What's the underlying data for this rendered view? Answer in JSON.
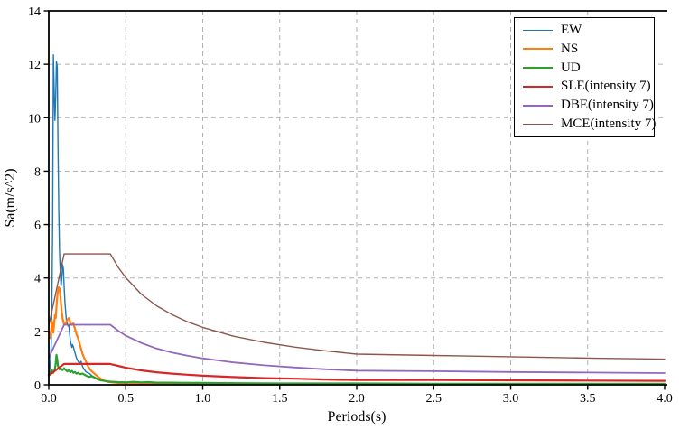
{
  "figure": {
    "background": "#ffffff",
    "grid_color": "#b0b0b0",
    "axis_color": "#000000"
  },
  "chart_data": {
    "type": "line",
    "title": "",
    "xlabel": "Periods(s)",
    "ylabel": "Sa(m/s^2)",
    "xlim": [
      0,
      4
    ],
    "ylim": [
      0,
      14
    ],
    "xticks": [
      "0.0",
      "0.5",
      "1.0",
      "1.5",
      "2.0",
      "2.5",
      "3.0",
      "3.5",
      "4.0"
    ],
    "yticks": [
      "0",
      "2",
      "4",
      "6",
      "8",
      "10",
      "12",
      "14"
    ],
    "grid": {
      "visible": true,
      "style": "dashed"
    },
    "legend_position": "upper right",
    "series": [
      {
        "name": "EW",
        "color": "#1f77b4",
        "width": 1.4,
        "points": [
          [
            0,
            0.3
          ],
          [
            0.005,
            0.5
          ],
          [
            0.01,
            0.8
          ],
          [
            0.015,
            1.4
          ],
          [
            0.02,
            2.8
          ],
          [
            0.025,
            6.0
          ],
          [
            0.03,
            12.35
          ],
          [
            0.035,
            11.0
          ],
          [
            0.04,
            9.9
          ],
          [
            0.045,
            10.8
          ],
          [
            0.05,
            12.1
          ],
          [
            0.055,
            11.9
          ],
          [
            0.06,
            9.0
          ],
          [
            0.065,
            6.5
          ],
          [
            0.07,
            5.0
          ],
          [
            0.075,
            4.2
          ],
          [
            0.08,
            3.7
          ],
          [
            0.085,
            4.0
          ],
          [
            0.09,
            4.5
          ],
          [
            0.095,
            4.35
          ],
          [
            0.1,
            3.7
          ],
          [
            0.105,
            3.1
          ],
          [
            0.11,
            2.7
          ],
          [
            0.115,
            2.4
          ],
          [
            0.12,
            2.3
          ],
          [
            0.125,
            2.2
          ],
          [
            0.13,
            2.25
          ],
          [
            0.135,
            1.95
          ],
          [
            0.14,
            1.65
          ],
          [
            0.15,
            1.4
          ],
          [
            0.155,
            1.5
          ],
          [
            0.16,
            1.42
          ],
          [
            0.17,
            1.2
          ],
          [
            0.18,
            1.0
          ],
          [
            0.19,
            0.88
          ],
          [
            0.2,
            0.82
          ],
          [
            0.21,
            0.88
          ],
          [
            0.22,
            0.68
          ],
          [
            0.23,
            0.58
          ],
          [
            0.24,
            0.5
          ],
          [
            0.25,
            0.46
          ],
          [
            0.26,
            0.44
          ],
          [
            0.27,
            0.4
          ],
          [
            0.28,
            0.34
          ],
          [
            0.3,
            0.28
          ],
          [
            0.32,
            0.22
          ],
          [
            0.34,
            0.18
          ],
          [
            0.36,
            0.15
          ],
          [
            0.38,
            0.13
          ],
          [
            0.4,
            0.12
          ],
          [
            0.45,
            0.1
          ],
          [
            0.5,
            0.1
          ],
          [
            0.55,
            0.09
          ],
          [
            0.6,
            0.08
          ],
          [
            0.7,
            0.09
          ],
          [
            0.8,
            0.07
          ],
          [
            0.9,
            0.08
          ],
          [
            1.0,
            0.06
          ],
          [
            1.1,
            0.07
          ],
          [
            1.25,
            0.06
          ],
          [
            1.5,
            0.05
          ],
          [
            1.75,
            0.05
          ],
          [
            2.0,
            0.05
          ],
          [
            2.25,
            0.04
          ],
          [
            2.5,
            0.04
          ],
          [
            2.75,
            0.04
          ],
          [
            3.0,
            0.04
          ],
          [
            3.25,
            0.03
          ],
          [
            3.5,
            0.03
          ],
          [
            3.75,
            0.03
          ],
          [
            4.0,
            0.03
          ]
        ]
      },
      {
        "name": "NS",
        "color": "#ff7f0e",
        "width": 2.2,
        "points": [
          [
            0,
            2.0
          ],
          [
            0.01,
            1.75
          ],
          [
            0.015,
            2.0
          ],
          [
            0.02,
            2.4
          ],
          [
            0.025,
            2.2
          ],
          [
            0.03,
            1.95
          ],
          [
            0.035,
            2.3
          ],
          [
            0.04,
            2.6
          ],
          [
            0.045,
            2.5
          ],
          [
            0.05,
            2.9
          ],
          [
            0.055,
            3.3
          ],
          [
            0.06,
            3.5
          ],
          [
            0.065,
            3.65
          ],
          [
            0.07,
            3.6
          ],
          [
            0.075,
            3.4
          ],
          [
            0.08,
            3.0
          ],
          [
            0.085,
            2.7
          ],
          [
            0.09,
            2.5
          ],
          [
            0.095,
            2.35
          ],
          [
            0.1,
            2.25
          ],
          [
            0.11,
            2.3
          ],
          [
            0.12,
            2.42
          ],
          [
            0.13,
            2.5
          ],
          [
            0.135,
            2.45
          ],
          [
            0.14,
            2.3
          ],
          [
            0.15,
            2.25
          ],
          [
            0.16,
            2.3
          ],
          [
            0.17,
            2.1
          ],
          [
            0.18,
            1.9
          ],
          [
            0.19,
            1.75
          ],
          [
            0.2,
            1.55
          ],
          [
            0.21,
            1.35
          ],
          [
            0.22,
            1.15
          ],
          [
            0.23,
            1.0
          ],
          [
            0.24,
            0.9
          ],
          [
            0.25,
            0.75
          ],
          [
            0.26,
            0.65
          ],
          [
            0.27,
            0.56
          ],
          [
            0.28,
            0.5
          ],
          [
            0.3,
            0.4
          ],
          [
            0.32,
            0.3
          ],
          [
            0.34,
            0.22
          ],
          [
            0.36,
            0.16
          ],
          [
            0.38,
            0.12
          ],
          [
            0.4,
            0.1
          ],
          [
            0.45,
            0.07
          ],
          [
            0.5,
            0.06
          ],
          [
            0.6,
            0.05
          ],
          [
            0.7,
            0.05
          ],
          [
            0.8,
            0.04
          ],
          [
            1.0,
            0.04
          ],
          [
            1.25,
            0.03
          ],
          [
            1.5,
            0.03
          ],
          [
            2.0,
            0.03
          ],
          [
            2.5,
            0.02
          ],
          [
            3.0,
            0.02
          ],
          [
            3.5,
            0.02
          ],
          [
            4.0,
            0.02
          ]
        ]
      },
      {
        "name": "UD",
        "color": "#2ca02c",
        "width": 2.2,
        "points": [
          [
            0,
            0.38
          ],
          [
            0.01,
            0.48
          ],
          [
            0.015,
            0.42
          ],
          [
            0.02,
            0.55
          ],
          [
            0.025,
            0.5
          ],
          [
            0.03,
            0.45
          ],
          [
            0.035,
            0.52
          ],
          [
            0.04,
            0.6
          ],
          [
            0.045,
            0.8
          ],
          [
            0.05,
            1.12
          ],
          [
            0.055,
            0.95
          ],
          [
            0.06,
            0.7
          ],
          [
            0.065,
            0.62
          ],
          [
            0.07,
            0.58
          ],
          [
            0.075,
            0.65
          ],
          [
            0.08,
            0.6
          ],
          [
            0.09,
            0.55
          ],
          [
            0.1,
            0.62
          ],
          [
            0.11,
            0.55
          ],
          [
            0.12,
            0.5
          ],
          [
            0.13,
            0.55
          ],
          [
            0.14,
            0.48
          ],
          [
            0.15,
            0.52
          ],
          [
            0.16,
            0.45
          ],
          [
            0.17,
            0.48
          ],
          [
            0.18,
            0.42
          ],
          [
            0.19,
            0.45
          ],
          [
            0.2,
            0.4
          ],
          [
            0.22,
            0.42
          ],
          [
            0.24,
            0.35
          ],
          [
            0.26,
            0.3
          ],
          [
            0.28,
            0.32
          ],
          [
            0.3,
            0.26
          ],
          [
            0.32,
            0.2
          ],
          [
            0.34,
            0.17
          ],
          [
            0.36,
            0.15
          ],
          [
            0.38,
            0.13
          ],
          [
            0.4,
            0.12
          ],
          [
            0.45,
            0.1
          ],
          [
            0.5,
            0.09
          ],
          [
            0.55,
            0.11
          ],
          [
            0.6,
            0.09
          ],
          [
            0.65,
            0.1
          ],
          [
            0.7,
            0.08
          ],
          [
            0.8,
            0.08
          ],
          [
            0.9,
            0.07
          ],
          [
            1.0,
            0.07
          ],
          [
            1.2,
            0.06
          ],
          [
            1.5,
            0.05
          ],
          [
            2.0,
            0.05
          ],
          [
            2.5,
            0.04
          ],
          [
            3.0,
            0.04
          ],
          [
            3.5,
            0.04
          ],
          [
            4.0,
            0.04
          ]
        ]
      },
      {
        "name": "SLE(intensity 7)",
        "color": "#d62728",
        "width": 2.2,
        "points": [
          [
            0,
            0.35
          ],
          [
            0.1,
            0.78
          ],
          [
            0.4,
            0.78
          ],
          [
            0.45,
            0.71
          ],
          [
            0.5,
            0.64
          ],
          [
            0.6,
            0.54
          ],
          [
            0.7,
            0.47
          ],
          [
            0.8,
            0.42
          ],
          [
            0.9,
            0.38
          ],
          [
            1.0,
            0.34
          ],
          [
            1.2,
            0.29
          ],
          [
            1.4,
            0.25
          ],
          [
            1.6,
            0.23
          ],
          [
            1.8,
            0.2
          ],
          [
            2.0,
            0.18
          ],
          [
            2.5,
            0.18
          ],
          [
            3.0,
            0.17
          ],
          [
            3.5,
            0.16
          ],
          [
            4.0,
            0.15
          ]
        ]
      },
      {
        "name": "DBE(intensity 7)",
        "color": "#9467bd",
        "width": 1.8,
        "points": [
          [
            0,
            1.01
          ],
          [
            0.1,
            2.25
          ],
          [
            0.4,
            2.25
          ],
          [
            0.45,
            2.03
          ],
          [
            0.5,
            1.84
          ],
          [
            0.6,
            1.57
          ],
          [
            0.7,
            1.36
          ],
          [
            0.8,
            1.21
          ],
          [
            0.9,
            1.09
          ],
          [
            1.0,
            0.99
          ],
          [
            1.2,
            0.84
          ],
          [
            1.4,
            0.73
          ],
          [
            1.6,
            0.65
          ],
          [
            1.8,
            0.58
          ],
          [
            2.0,
            0.53
          ],
          [
            2.5,
            0.51
          ],
          [
            3.0,
            0.48
          ],
          [
            3.5,
            0.46
          ],
          [
            4.0,
            0.44
          ]
        ]
      },
      {
        "name": "MCE(intensity 7)",
        "color": "#8c564b",
        "width": 1.4,
        "points": [
          [
            0,
            2.21
          ],
          [
            0.1,
            4.9
          ],
          [
            0.4,
            4.9
          ],
          [
            0.45,
            4.41
          ],
          [
            0.5,
            4.01
          ],
          [
            0.6,
            3.4
          ],
          [
            0.7,
            2.96
          ],
          [
            0.8,
            2.63
          ],
          [
            0.9,
            2.36
          ],
          [
            1.0,
            2.15
          ],
          [
            1.2,
            1.82
          ],
          [
            1.4,
            1.59
          ],
          [
            1.6,
            1.41
          ],
          [
            1.8,
            1.27
          ],
          [
            2.0,
            1.15
          ],
          [
            2.5,
            1.1
          ],
          [
            3.0,
            1.05
          ],
          [
            3.5,
            1.0
          ],
          [
            4.0,
            0.96
          ]
        ]
      }
    ]
  }
}
